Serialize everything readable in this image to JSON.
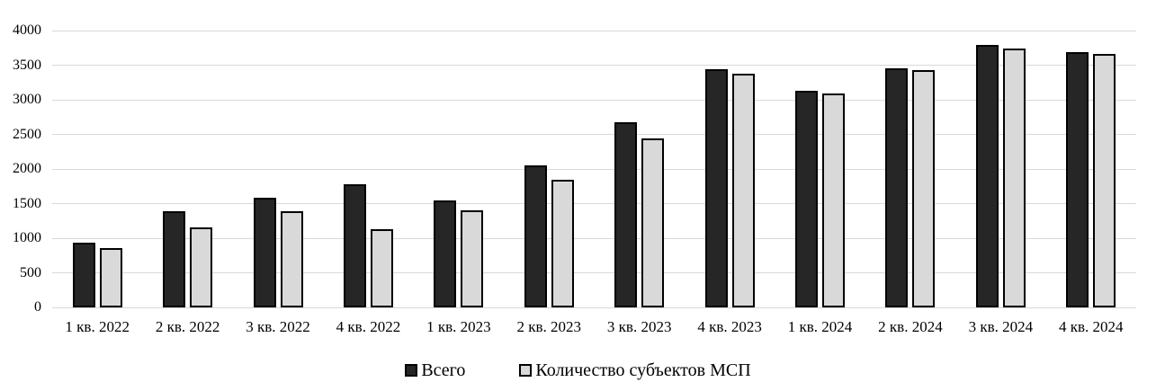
{
  "chart_data": {
    "type": "bar",
    "title": "",
    "xlabel": "",
    "ylabel": "",
    "categories": [
      "1 кв. 2022",
      "2 кв. 2022",
      "3 кв. 2022",
      "4 кв. 2022",
      "1 кв. 2023",
      "2 кв. 2023",
      "3 кв. 2023",
      "4 кв. 2023",
      "1 кв. 2024",
      "2 кв. 2024",
      "3 кв. 2024",
      "4 кв. 2024"
    ],
    "series": [
      {
        "name": "Всего",
        "color": "#262626",
        "values": [
          940,
          1390,
          1580,
          1780,
          1540,
          2050,
          2670,
          3440,
          3130,
          3460,
          3790,
          3690
        ]
      },
      {
        "name": "Количество субъектов МСП",
        "color": "#d9d9d9",
        "values": [
          860,
          1150,
          1390,
          1130,
          1400,
          1840,
          2440,
          3380,
          3090,
          3430,
          3740,
          3660
        ]
      }
    ],
    "ylim": [
      0,
      4000
    ],
    "yticks": [
      0,
      500,
      1000,
      1500,
      2000,
      2500,
      3000,
      3500,
      4000
    ],
    "grid": true,
    "gridline_color": "#d9d9d9",
    "bar_border_color": "#000000",
    "legend_position": "bottom"
  }
}
